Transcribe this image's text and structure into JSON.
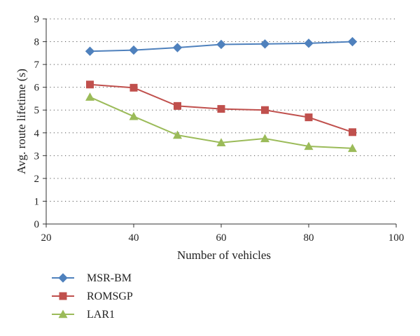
{
  "chart_data": {
    "type": "line",
    "title": "",
    "xlabel": "Number of vehicles",
    "ylabel": "Avg. route lifetime (s)",
    "xlim": [
      20,
      100
    ],
    "ylim": [
      0,
      9
    ],
    "xticks": [
      20,
      40,
      60,
      80,
      100
    ],
    "yticks": [
      0,
      1,
      2,
      3,
      4,
      5,
      6,
      7,
      8,
      9
    ],
    "grid": "horizontal dotted",
    "legend_position": "bottom-left, below plot",
    "x": [
      30,
      40,
      50,
      60,
      70,
      80,
      90
    ],
    "series": [
      {
        "name": "MSR-BM",
        "color": "#4f81bd",
        "marker": "diamond",
        "values": [
          7.58,
          7.63,
          7.74,
          7.88,
          7.9,
          7.93,
          8.0
        ]
      },
      {
        "name": "ROMSGP",
        "color": "#c0504d",
        "marker": "square",
        "values": [
          6.12,
          5.98,
          5.18,
          5.05,
          5.0,
          4.68,
          4.03
        ]
      },
      {
        "name": "LAR1",
        "color": "#9bbb59",
        "marker": "triangle",
        "values": [
          5.57,
          4.72,
          3.9,
          3.57,
          3.75,
          3.41,
          3.32
        ]
      }
    ]
  }
}
